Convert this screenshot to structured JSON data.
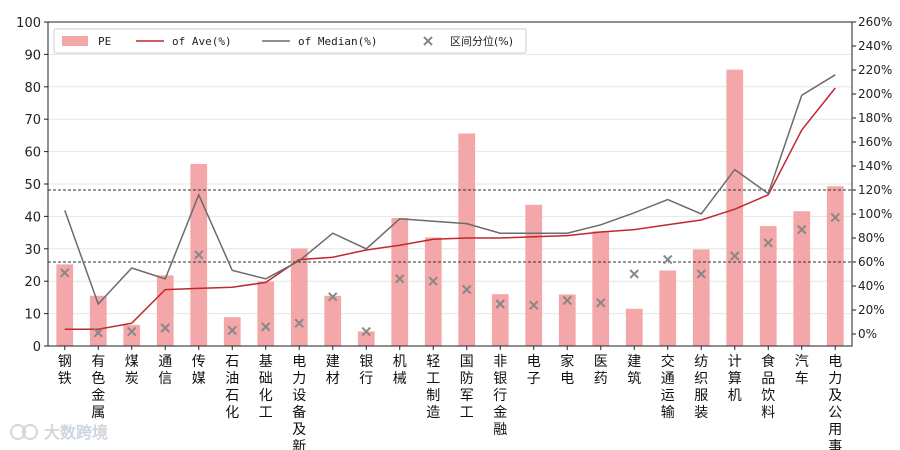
{
  "chart_data": {
    "type": "bar",
    "categories": [
      "钢铁",
      "有色金属",
      "煤炭",
      "通信",
      "传媒",
      "石油石化",
      "基础化工",
      "电力设备及新",
      "建材",
      "银行",
      "机械",
      "轻工制造",
      "国防军工",
      "非银行金融",
      "电子",
      "家电",
      "医药",
      "建筑",
      "交通运输",
      "纺织服装",
      "计算机",
      "食品饮料",
      "汽车",
      "电力及公用事"
    ],
    "series": [
      {
        "name": "PE",
        "type": "bar",
        "axis": "left",
        "color": "#f4a7a9",
        "values": [
          25.2,
          15.5,
          6.5,
          21.8,
          56.2,
          8.9,
          19.9,
          30.1,
          15.5,
          4.5,
          39.5,
          33.5,
          65.6,
          16.0,
          43.6,
          15.9,
          35.4,
          11.5,
          23.3,
          29.8,
          85.3,
          37.0,
          41.6,
          49.3
        ]
      },
      {
        "name": "of Ave(%)",
        "type": "line",
        "axis": "right",
        "color": "#c0282d",
        "values": [
          4,
          4,
          9,
          37,
          38,
          39,
          43,
          62,
          64,
          70,
          74,
          79,
          80,
          80,
          81,
          82,
          85,
          87,
          91,
          95,
          104,
          116,
          170,
          205
        ]
      },
      {
        "name": "of Median(%)",
        "type": "line",
        "axis": "right",
        "color": "#6b6b6b",
        "values": [
          103,
          25,
          55,
          46,
          116,
          53,
          46,
          61,
          84,
          71,
          96,
          94,
          92,
          84,
          84,
          84,
          91,
          101,
          112,
          100,
          137,
          117,
          199,
          216
        ]
      },
      {
        "name": "区间分位(%)",
        "type": "scatter",
        "axis": "right",
        "color": "#888888",
        "values": [
          51,
          1,
          2,
          5,
          66,
          3,
          6,
          9,
          31,
          2,
          46,
          44,
          37,
          25,
          24,
          28,
          26,
          50,
          62,
          50,
          65,
          76,
          87,
          97
        ]
      }
    ],
    "y_left": {
      "min": 0,
      "max": 100,
      "ticks": [
        0,
        10,
        20,
        30,
        40,
        50,
        60,
        70,
        80,
        90,
        100
      ]
    },
    "y_right": {
      "min": -10,
      "max": 260,
      "ticks": [
        "0%",
        "20%",
        "40%",
        "60%",
        "80%",
        "100%",
        "120%",
        "140%",
        "160%",
        "180%",
        "200%",
        "220%",
        "240%",
        "260%"
      ]
    },
    "reference_lines_right": [
      60,
      120
    ],
    "legend_position": "top-left",
    "grid": "horizontal"
  },
  "watermark": "大数跨境"
}
